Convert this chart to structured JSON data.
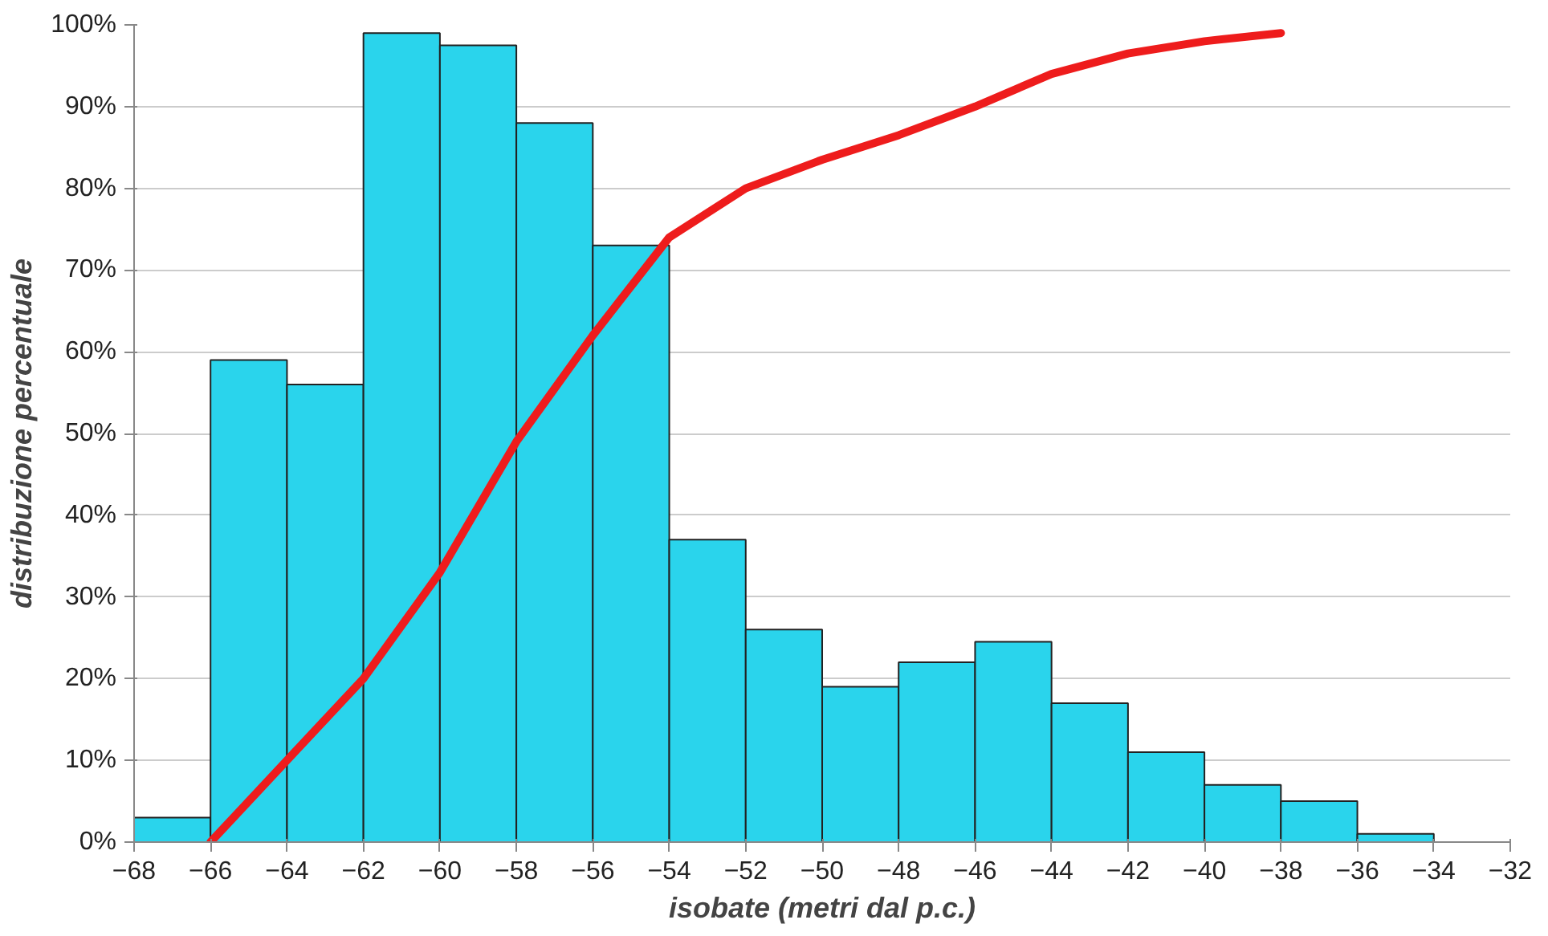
{
  "chart_data": {
    "type": "histogram",
    "xlabel": "isobate (metri dal p.c.)",
    "ylabel": "distribuzione percentuale",
    "bins": [
      -68,
      -66,
      -64,
      -62,
      -60,
      -58,
      -56,
      -54,
      -52,
      -50,
      -48,
      -46,
      -44,
      -42,
      -40,
      -38,
      -36,
      -34
    ],
    "values": [
      3,
      59,
      56,
      99,
      97.5,
      88,
      73,
      37,
      26,
      19,
      22,
      24.5,
      17,
      11,
      7,
      5,
      1
    ],
    "color": "#2ad4ec",
    "series": [
      {
        "type": "line",
        "x": [
          -66,
          -64,
          -62,
          -60,
          -58,
          -56,
          -54,
          -52,
          -50,
          -48,
          -46,
          -44,
          -42,
          -40,
          -38
        ],
        "values": [
          0,
          10,
          20,
          33,
          49,
          62,
          74,
          80,
          83.5,
          86.5,
          90,
          94,
          96.5,
          98,
          99
        ],
        "color": "#ee1c1c"
      }
    ],
    "xlim": [
      -68,
      -32
    ],
    "ylim": [
      0,
      100
    ],
    "xticks": [
      -68,
      -66,
      -64,
      -62,
      -60,
      -58,
      -56,
      -54,
      -52,
      -50,
      -48,
      -46,
      -44,
      -42,
      -40,
      -38,
      -36,
      -34,
      -32
    ],
    "yticks": [
      {
        "value": 0,
        "label": "0%"
      },
      {
        "value": 10,
        "label": "10%"
      },
      {
        "value": 20,
        "label": "20%"
      },
      {
        "value": 30,
        "label": "30%"
      },
      {
        "value": 40,
        "label": "40%"
      },
      {
        "value": 50,
        "label": "50%"
      },
      {
        "value": 60,
        "label": "60%"
      },
      {
        "value": 70,
        "label": "70%"
      },
      {
        "value": 80,
        "label": "80%"
      },
      {
        "value": 90,
        "label": "90%"
      },
      {
        "value": 100,
        "label": "100%"
      }
    ],
    "grid": "y"
  }
}
